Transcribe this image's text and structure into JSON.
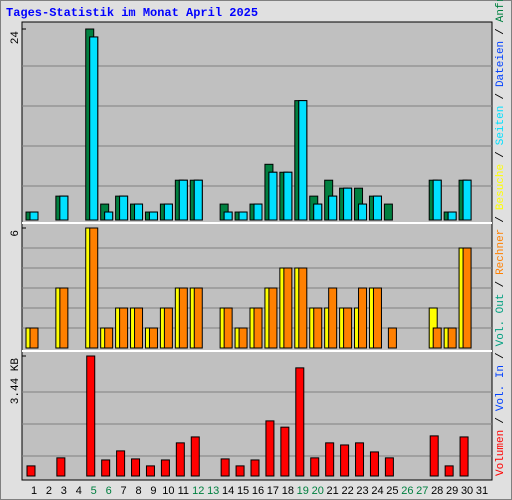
{
  "chart_data": {
    "type": "bar",
    "title": "Tages-Statistik im Monat April 2025",
    "categories": [
      "1",
      "2",
      "3",
      "4",
      "5",
      "6",
      "7",
      "8",
      "9",
      "10",
      "11",
      "12",
      "13",
      "14",
      "15",
      "16",
      "17",
      "18",
      "19",
      "20",
      "21",
      "22",
      "23",
      "24",
      "25",
      "26",
      "27",
      "28",
      "29",
      "30",
      "31"
    ],
    "category_colors": [
      "#000000",
      "#000000",
      "#000000",
      "#000000",
      "#008040",
      "#008040",
      "#000000",
      "#000000",
      "#000000",
      "#000000",
      "#000000",
      "#008040",
      "#008040",
      "#000000",
      "#000000",
      "#000000",
      "#000000",
      "#000000",
      "#008040",
      "#008040",
      "#000000",
      "#000000",
      "#000000",
      "#000000",
      "#000000",
      "#008040",
      "#008040",
      "#000000",
      "#000000",
      "#000000",
      "#000000"
    ],
    "legend_separator": "/",
    "panels": [
      {
        "ylim": [
          0,
          24
        ],
        "yticks": [
          24
        ],
        "series": [
          {
            "name": "Anfragen",
            "color": "#008040",
            "values": [
              1,
              0,
              3,
              0,
              24,
              2,
              3,
              2,
              1,
              2,
              5,
              5,
              0,
              2,
              1,
              2,
              7,
              6,
              15,
              3,
              5,
              4,
              4,
              3,
              2,
              0,
              0,
              5,
              1,
              5,
              0
            ]
          },
          {
            "name": "Dateien",
            "color": "#0040ff",
            "values": [
              1,
              0,
              3,
              0,
              23,
              1,
              3,
              2,
              1,
              2,
              5,
              5,
              0,
              1,
              1,
              2,
              6,
              6,
              15,
              2,
              3,
              4,
              2,
              3,
              0,
              0,
              0,
              5,
              1,
              5,
              0
            ]
          },
          {
            "name": "Seiten",
            "color": "#00e0ff",
            "values": [
              1,
              0,
              3,
              0,
              23,
              1,
              3,
              2,
              1,
              2,
              5,
              5,
              0,
              1,
              1,
              2,
              6,
              6,
              15,
              2,
              3,
              4,
              2,
              3,
              0,
              0,
              0,
              5,
              1,
              5,
              0
            ]
          }
        ]
      },
      {
        "ylim": [
          0,
          6
        ],
        "yticks": [
          6
        ],
        "series": [
          {
            "name": "Besuche",
            "color": "#ffff00",
            "values": [
              1,
              0,
              3,
              0,
              6,
              1,
              2,
              2,
              1,
              2,
              3,
              3,
              0,
              2,
              1,
              2,
              3,
              4,
              4,
              2,
              2,
              2,
              2,
              3,
              0,
              0,
              0,
              2,
              1,
              5,
              0
            ]
          },
          {
            "name": "Rechner",
            "color": "#ff8000",
            "values": [
              1,
              0,
              3,
              0,
              6,
              1,
              2,
              2,
              1,
              2,
              3,
              3,
              0,
              2,
              1,
              2,
              3,
              4,
              4,
              2,
              3,
              2,
              3,
              3,
              1,
              0,
              0,
              1,
              1,
              5,
              0
            ]
          }
        ]
      },
      {
        "ylim": [
          0,
          3.44
        ],
        "yticks": [
          {
            "value": 3.44,
            "label": "3.44 KB"
          }
        ],
        "series": [
          {
            "name": "Vol. Out",
            "color": "#00a080",
            "values": [
              0,
              0,
              0,
              0,
              0,
              0,
              0,
              0,
              0,
              0,
              0,
              0,
              0,
              0,
              0,
              0,
              0,
              0,
              0,
              0,
              0,
              0,
              0,
              0,
              0,
              0,
              0,
              0,
              0,
              0,
              0
            ]
          },
          {
            "name": "Vol. In",
            "color": "#0040ff",
            "values": [
              0,
              0,
              0,
              0,
              0,
              0,
              0,
              0,
              0,
              0,
              0,
              0,
              0,
              0,
              0,
              0,
              0,
              0,
              0,
              0,
              0,
              0,
              0,
              0,
              0,
              0,
              0,
              0,
              0,
              0,
              0
            ]
          },
          {
            "name": "Volumen",
            "color": "#ff0000",
            "values": [
              0.29,
              0,
              0.52,
              0,
              3.44,
              0.46,
              0.72,
              0.49,
              0.29,
              0.46,
              0.95,
              1.12,
              0,
              0.49,
              0.29,
              0.46,
              1.58,
              1.4,
              3.1,
              0.52,
              0.95,
              0.89,
              0.95,
              0.69,
              0.52,
              0,
              0,
              1.15,
              0.29,
              1.12,
              0
            ]
          }
        ]
      }
    ]
  }
}
